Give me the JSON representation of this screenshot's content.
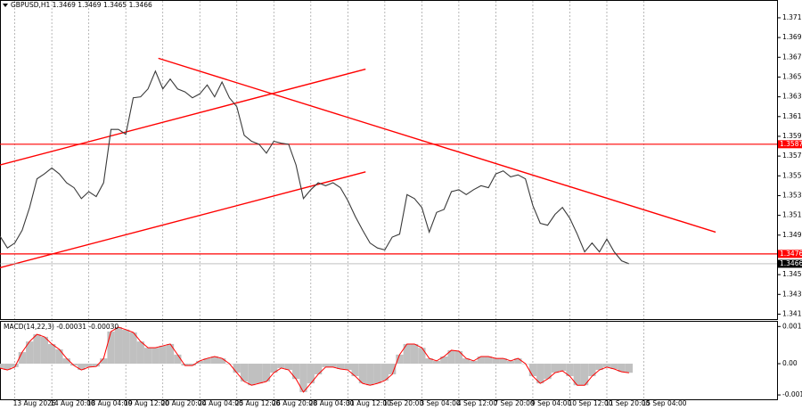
{
  "chart_data": [
    {
      "type": "line",
      "title": "GBPUSD,H1 1.3469 1.3469 1.3465 1.3466",
      "x": [
        0,
        1,
        2,
        3,
        4,
        5,
        6,
        7,
        8,
        9,
        10,
        11,
        12,
        13,
        14,
        15,
        16,
        17,
        18,
        19,
        20,
        21,
        22,
        23,
        24,
        25,
        26,
        27,
        28,
        29,
        30,
        31,
        32,
        33,
        34,
        35,
        36,
        37,
        38,
        39,
        40,
        41,
        42,
        43,
        44,
        45,
        46,
        47,
        48,
        49,
        50,
        51,
        52,
        53,
        54,
        55,
        56,
        57,
        58,
        59,
        60,
        61,
        62,
        63,
        64,
        65,
        66,
        67,
        68,
        69,
        70,
        71,
        72,
        73,
        74,
        75,
        76,
        77,
        78,
        79,
        80,
        81,
        82,
        83,
        84,
        85
      ],
      "series": [
        {
          "color": "#3a3a3a",
          "values": [
            1.3494,
            1.3482,
            1.3487,
            1.35,
            1.3523,
            1.3552,
            1.3557,
            1.3563,
            1.3557,
            1.3548,
            1.3543,
            1.3532,
            1.3539,
            1.3534,
            1.3548,
            1.3602,
            1.3602,
            1.3597,
            1.3634,
            1.3635,
            1.3643,
            1.3661,
            1.3643,
            1.3653,
            1.3643,
            1.364,
            1.3634,
            1.3638,
            1.3647,
            1.3635,
            1.365,
            1.3634,
            1.3625,
            1.3596,
            1.359,
            1.3587,
            1.3578,
            1.359,
            1.3588,
            1.3587,
            1.3566,
            1.3532,
            1.3541,
            1.3548,
            1.3545,
            1.3548,
            1.3543,
            1.353,
            1.3514,
            1.35,
            1.3487,
            1.3482,
            1.348,
            1.3493,
            1.3496,
            1.3536,
            1.3532,
            1.3523,
            1.3498,
            1.3518,
            1.3521,
            1.3539,
            1.3541,
            1.3536,
            1.3541,
            1.3545,
            1.3543,
            1.3557,
            1.356,
            1.3554,
            1.3556,
            1.3552,
            1.3525,
            1.3507,
            1.3505,
            1.3516,
            1.3523,
            1.3512,
            1.3496,
            1.3478,
            1.3487,
            1.3478,
            1.3491,
            1.3478,
            1.3469,
            1.3466
          ]
        }
      ],
      "xlim": [
        0,
        105
      ],
      "ylim": [
        1.341,
        1.3733
      ],
      "yticks": [
        1.3715,
        1.3695,
        1.3675,
        1.3655,
        1.3635,
        1.3615,
        1.3595,
        1.3575,
        1.3555,
        1.3535,
        1.3515,
        1.3495,
        1.3475,
        1.3455,
        1.3435,
        1.3415
      ],
      "xticks": [
        {
          "value": 2,
          "label": "13 Aug 2026"
        },
        {
          "value": 7,
          "label": "14 Aug 20:00"
        },
        {
          "value": 12,
          "label": "18 Aug 04:00"
        },
        {
          "value": 17,
          "label": "19 Aug 12:00"
        },
        {
          "value": 22,
          "label": "20 Aug 20:00"
        },
        {
          "value": 27,
          "label": "24 Aug 04:00"
        },
        {
          "value": 32,
          "label": "25 Aug 12:00"
        },
        {
          "value": 37,
          "label": "26 Aug 20:00"
        },
        {
          "value": 42,
          "label": "28 Aug 04:00"
        },
        {
          "value": 47,
          "label": "31 Aug 12:00"
        },
        {
          "value": 52,
          "label": "1 Sep 20:00"
        },
        {
          "value": 57,
          "label": "3 Sep 04:00"
        },
        {
          "value": 62,
          "label": "4 Sep 12:00"
        },
        {
          "value": 67,
          "label": "7 Sep 20:00"
        },
        {
          "value": 72,
          "label": "9 Sep 04:00"
        },
        {
          "value": 77,
          "label": "10 Sep 12:00"
        },
        {
          "value": 82,
          "label": "11 Sep 20:00"
        },
        {
          "value": 87,
          "label": "15 Sep 04:00"
        }
      ],
      "trendlines": [
        {
          "x": [
            0,
            49.4
          ],
          "y": [
            1.3566,
            1.3663
          ]
        },
        {
          "x": [
            0,
            49.4
          ],
          "y": [
            1.3462,
            1.3559
          ]
        },
        {
          "x": [
            21.4,
            96.7
          ],
          "y": [
            1.3674,
            1.3498
          ]
        }
      ],
      "trend_color": "#ff0000",
      "levels": [
        1.3587,
        1.3476
      ],
      "level_color": "#ff0000",
      "last_color": "#000000"
    },
    {
      "type": "bar",
      "title": "MACD(14,22,3) -0.00031 -0.00030",
      "x": [
        0,
        1,
        2,
        3,
        4,
        5,
        6,
        7,
        8,
        9,
        10,
        11,
        12,
        13,
        14,
        15,
        16,
        17,
        18,
        19,
        20,
        21,
        22,
        23,
        24,
        25,
        26,
        27,
        28,
        29,
        30,
        31,
        32,
        33,
        34,
        35,
        36,
        37,
        38,
        39,
        40,
        41,
        42,
        43,
        44,
        45,
        46,
        47,
        48,
        49,
        50,
        51,
        52,
        53,
        54,
        55,
        56,
        57,
        58,
        59,
        60,
        61,
        62,
        63,
        64,
        65,
        66,
        67,
        68,
        69,
        70,
        71,
        72,
        73,
        74,
        75,
        76,
        77,
        78,
        79,
        80,
        81,
        82,
        83,
        84,
        85
      ],
      "values": [
        -0.00014,
        -0.0002,
        -0.00011,
        0.00037,
        0.00071,
        0.00094,
        0.00086,
        0.00063,
        0.00046,
        0.00017,
        -6e-05,
        -0.0002,
        -0.00011,
        -9e-05,
        0.00017,
        0.00103,
        0.00117,
        0.00109,
        0.001,
        0.00071,
        0.00051,
        0.00051,
        0.00057,
        0.00063,
        0.00029,
        -6e-05,
        -6e-05,
        9e-05,
        0.00017,
        0.00023,
        0.00017,
        0,
        -0.00029,
        -0.00057,
        -0.00069,
        -0.00063,
        -0.00057,
        -0.00029,
        -0.00014,
        -0.0002,
        -0.00049,
        -0.00091,
        -0.00063,
        -0.00034,
        -0.00011,
        -0.00011,
        -0.00017,
        -0.0002,
        -0.0004,
        -0.00063,
        -0.00069,
        -0.00063,
        -0.00054,
        -0.00034,
        0.00029,
        0.00063,
        0.00063,
        0.00051,
        0.00017,
        9e-05,
        0.00023,
        0.00043,
        0.0004,
        0.00017,
        9e-05,
        0.00023,
        0.00023,
        0.00017,
        0.00017,
        9e-05,
        0.00017,
        0,
        -0.0004,
        -0.00063,
        -0.00049,
        -0.00029,
        -0.00023,
        -0.0004,
        -0.00069,
        -0.00069,
        -0.0004,
        -0.0002,
        -0.00011,
        -0.00017,
        -0.00026,
        -0.00029
      ],
      "color": "#c0c0c0",
      "line_color": "#ff0000",
      "xlim": [
        0,
        105
      ],
      "ylim": [
        -0.00114,
        0.00137
      ],
      "yticks": [
        0.00119,
        {
          "value": 0,
          "label": "0.00"
        },
        -0.001
      ]
    }
  ]
}
